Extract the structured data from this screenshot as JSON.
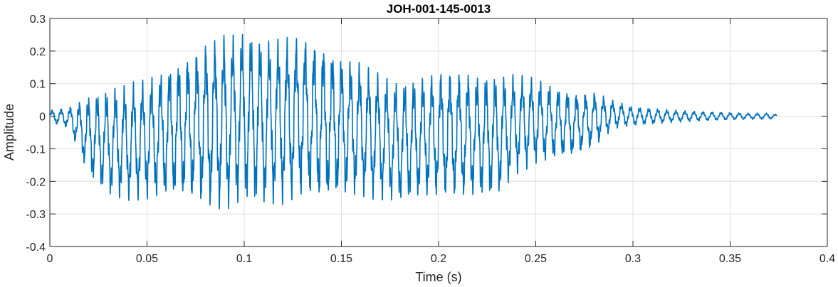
{
  "chart_data": {
    "type": "line",
    "title": "JOH-001-145-0013",
    "xlabel": "Time (s)",
    "ylabel": "Amplitude",
    "xlim": [
      0,
      0.4
    ],
    "ylim": [
      -0.4,
      0.3
    ],
    "xticks": [
      0,
      0.05,
      0.1,
      0.15,
      0.2,
      0.25,
      0.3,
      0.35,
      0.4
    ],
    "xtick_labels": [
      "0",
      "0.05",
      "0.1",
      "0.15",
      "0.2",
      "0.25",
      "0.3",
      "0.35",
      "0.4"
    ],
    "yticks": [
      -0.4,
      -0.3,
      -0.2,
      -0.1,
      0,
      0.1,
      0.2,
      0.3
    ],
    "ytick_labels": [
      "-0.4",
      "-0.3",
      "-0.2",
      "-0.1",
      "0",
      "0.1",
      "0.2",
      "0.3"
    ],
    "grid": true,
    "line_color": "#0072BD",
    "series": [
      {
        "x": [
          0,
          0.01,
          0.02,
          0.03,
          0.04,
          0.05,
          0.06,
          0.07,
          0.08,
          0.09,
          0.1,
          0.11,
          0.12,
          0.13,
          0.14,
          0.15,
          0.16,
          0.17,
          0.18,
          0.19,
          0.2,
          0.21,
          0.22,
          0.23,
          0.24,
          0.25,
          0.26,
          0.27,
          0.28,
          0.29,
          0.3,
          0.31,
          0.32,
          0.33,
          0.34,
          0.35,
          0.36,
          0.37,
          0.374
        ],
        "upper_envelope": [
          0.02,
          0.03,
          0.07,
          0.09,
          0.1,
          0.12,
          0.16,
          0.2,
          0.24,
          0.26,
          0.27,
          0.24,
          0.25,
          0.26,
          0.24,
          0.2,
          0.17,
          0.13,
          0.11,
          0.13,
          0.15,
          0.15,
          0.14,
          0.13,
          0.13,
          0.12,
          0.1,
          0.08,
          0.08,
          0.05,
          0.03,
          0.025,
          0.02,
          0.017,
          0.015,
          0.012,
          0.01,
          0.01,
          0.005
        ],
        "lower_envelope": [
          -0.02,
          -0.04,
          -0.19,
          -0.25,
          -0.26,
          -0.26,
          -0.26,
          -0.27,
          -0.29,
          -0.3,
          -0.27,
          -0.28,
          -0.28,
          -0.26,
          -0.28,
          -0.26,
          -0.25,
          -0.26,
          -0.27,
          -0.26,
          -0.26,
          -0.26,
          -0.26,
          -0.25,
          -0.18,
          -0.15,
          -0.14,
          -0.13,
          -0.1,
          -0.04,
          -0.03,
          -0.025,
          -0.02,
          -0.017,
          -0.015,
          -0.012,
          -0.01,
          -0.01,
          -0.005
        ]
      }
    ]
  }
}
